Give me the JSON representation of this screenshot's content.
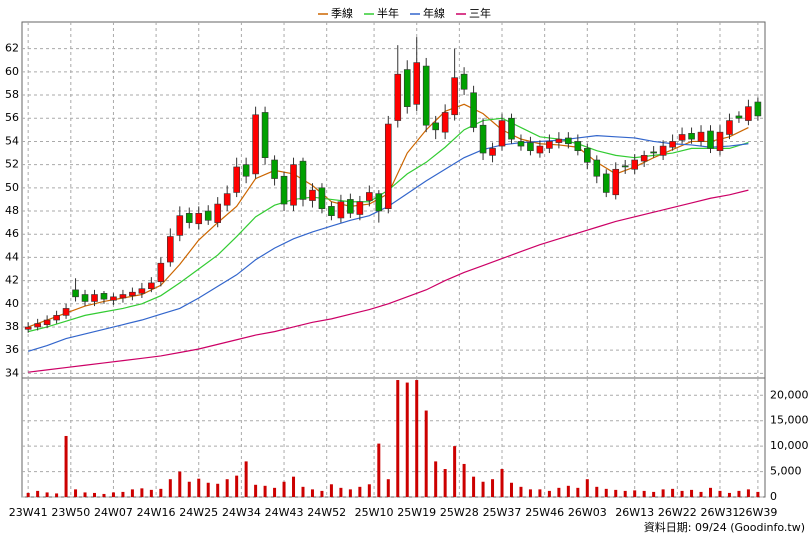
{
  "chart_data": {
    "type": "candlestick",
    "footer": "資料日期: 09/24 (Goodinfo.tw)",
    "up_color": "#ff0000",
    "down_color": "#00a000",
    "volume_color": "#cc0000",
    "grid": true,
    "xlim": [
      -1.3,
      155.5
    ],
    "xticks": [
      {
        "value": 0,
        "label": "23W41"
      },
      {
        "value": 9,
        "label": "23W50"
      },
      {
        "value": 18,
        "label": "24W07"
      },
      {
        "value": 27,
        "label": "24W16"
      },
      {
        "value": 36,
        "label": "24W25"
      },
      {
        "value": 45,
        "label": "24W34"
      },
      {
        "value": 54,
        "label": "24W43"
      },
      {
        "value": 63,
        "label": "24W52"
      },
      {
        "value": 73,
        "label": "25W10"
      },
      {
        "value": 82,
        "label": "25W19"
      },
      {
        "value": 91,
        "label": "25W28"
      },
      {
        "value": 100,
        "label": "25W37"
      },
      {
        "value": 109,
        "label": "25W46"
      },
      {
        "value": 118,
        "label": "26W03"
      },
      {
        "value": 128,
        "label": "26W13"
      },
      {
        "value": 137,
        "label": "26W22"
      },
      {
        "value": 146,
        "label": "26W31"
      },
      {
        "value": 154,
        "label": "26W39"
      }
    ],
    "ylim": [
      33.6,
      64.3
    ],
    "yticks": [
      34,
      36,
      38,
      40,
      42,
      44,
      46,
      48,
      50,
      52,
      54,
      56,
      58,
      60,
      62
    ],
    "volume_ylim": [
      0,
      23400
    ],
    "volume_yticks": [
      0,
      {
        "value": 5000,
        "label": "5,000"
      },
      {
        "value": 10000,
        "label": "10,000"
      },
      {
        "value": 15000,
        "label": "15,000"
      },
      {
        "value": 20000,
        "label": "20,000"
      }
    ],
    "candles": {
      "x": [
        0,
        2,
        4,
        6,
        8,
        10,
        12,
        14,
        16,
        18,
        20,
        22,
        24,
        26,
        28,
        30,
        32,
        34,
        36,
        38,
        40,
        42,
        44,
        46,
        48,
        50,
        52,
        54,
        56,
        58,
        60,
        62,
        64,
        66,
        68,
        70,
        72,
        74,
        76,
        78,
        80,
        82,
        84,
        86,
        88,
        90,
        92,
        94,
        96,
        98,
        100,
        102,
        104,
        106,
        108,
        110,
        112,
        114,
        116,
        118,
        120,
        122,
        124,
        126,
        128,
        130,
        132,
        134,
        136,
        138,
        140,
        142,
        144,
        146,
        148,
        150,
        152,
        154
      ],
      "open": [
        37.8,
        38.0,
        38.2,
        38.6,
        39.0,
        41.2,
        40.8,
        40.2,
        40.9,
        40.3,
        40.5,
        40.7,
        40.9,
        41.3,
        41.9,
        43.6,
        45.9,
        47.8,
        46.9,
        48.0,
        47.0,
        48.5,
        49.6,
        52.0,
        51.2,
        56.5,
        52.4,
        51.0,
        48.5,
        52.3,
        48.9,
        50.0,
        48.4,
        47.4,
        49.0,
        47.7,
        48.9,
        49.5,
        48.2,
        55.8,
        60.2,
        57.2,
        60.5,
        55.6,
        54.8,
        56.3,
        59.8,
        58.2,
        55.4,
        52.8,
        53.6,
        56.0,
        54.0,
        53.9,
        53.0,
        53.4,
        53.9,
        54.3,
        54.0,
        53.4,
        52.4,
        51.2,
        49.4,
        51.9,
        51.6,
        52.3,
        53.1,
        52.8,
        53.5,
        54.1,
        54.7,
        54.0,
        54.9,
        53.2,
        54.6,
        56.2,
        55.8,
        57.4
      ],
      "high": [
        38.4,
        38.7,
        39.0,
        39.4,
        40.0,
        42.2,
        41.2,
        41.2,
        41.1,
        40.9,
        41.2,
        41.4,
        41.8,
        42.3,
        44.0,
        46.5,
        48.4,
        48.3,
        48.4,
        48.5,
        49.2,
        50.2,
        52.6,
        52.6,
        57.0,
        57.0,
        52.8,
        51.4,
        52.6,
        52.6,
        50.4,
        50.4,
        48.8,
        49.4,
        49.5,
        49.3,
        50.2,
        49.8,
        56.2,
        62.3,
        61.0,
        63.0,
        61.2,
        56.2,
        57.2,
        62.0,
        60.4,
        58.8,
        56.0,
        53.9,
        56.4,
        56.4,
        54.6,
        54.4,
        54.1,
        54.6,
        54.8,
        54.8,
        54.6,
        53.8,
        52.8,
        51.6,
        52.2,
        52.4,
        52.9,
        53.2,
        53.6,
        54.1,
        54.6,
        55.2,
        55.2,
        55.4,
        55.4,
        55.4,
        56.4,
        56.6,
        57.6,
        57.8
      ],
      "low": [
        37.5,
        37.7,
        37.9,
        38.3,
        38.7,
        40.2,
        39.8,
        39.8,
        40.0,
        39.9,
        40.1,
        40.3,
        40.5,
        41.0,
        41.5,
        43.2,
        45.4,
        46.5,
        46.4,
        46.8,
        46.6,
        48.0,
        49.2,
        50.4,
        50.8,
        52.0,
        50.2,
        48.0,
        48.0,
        48.4,
        48.3,
        47.8,
        47.2,
        47.0,
        47.4,
        47.2,
        48.4,
        47.0,
        47.8,
        55.2,
        56.4,
        56.6,
        54.8,
        54.2,
        54.2,
        55.8,
        58.0,
        54.8,
        52.4,
        52.2,
        53.2,
        53.8,
        53.2,
        52.8,
        52.6,
        53.0,
        53.4,
        53.4,
        52.8,
        51.6,
        50.4,
        49.2,
        49.0,
        51.2,
        51.2,
        51.8,
        52.6,
        52.4,
        53.2,
        53.8,
        53.8,
        53.6,
        53.0,
        52.8,
        54.2,
        55.6,
        55.4,
        55.8
      ],
      "close": [
        38.0,
        38.3,
        38.6,
        39.0,
        39.6,
        40.6,
        40.2,
        40.8,
        40.4,
        40.6,
        40.8,
        41.0,
        41.3,
        41.8,
        43.5,
        45.8,
        47.6,
        47.0,
        47.8,
        47.2,
        48.6,
        49.5,
        51.8,
        51.0,
        56.3,
        52.6,
        50.8,
        48.6,
        52.0,
        49.0,
        49.8,
        48.2,
        47.6,
        48.8,
        47.8,
        48.8,
        49.6,
        48.0,
        55.5,
        59.8,
        57.0,
        60.8,
        55.4,
        55.0,
        56.5,
        59.5,
        58.5,
        55.2,
        53.0,
        53.4,
        55.8,
        54.2,
        53.6,
        53.2,
        53.6,
        54.0,
        54.2,
        53.8,
        53.2,
        52.2,
        51.0,
        49.6,
        51.6,
        51.8,
        52.4,
        52.8,
        53.0,
        53.6,
        54.0,
        54.6,
        54.2,
        54.8,
        53.4,
        54.8,
        55.8,
        56.0,
        57.0,
        56.2
      ],
      "volume": [
        800,
        1200,
        900,
        700,
        12000,
        1500,
        900,
        800,
        600,
        900,
        1000,
        1500,
        1700,
        1400,
        1600,
        3500,
        5000,
        3000,
        3600,
        2800,
        2600,
        3500,
        4200,
        7000,
        2400,
        2200,
        1800,
        3000,
        4000,
        2000,
        1500,
        1200,
        2500,
        1800,
        1500,
        2000,
        2500,
        10500,
        3500,
        23000,
        22500,
        23000,
        17000,
        7000,
        5500,
        10000,
        6500,
        4000,
        3000,
        3500,
        5500,
        2800,
        2000,
        1500,
        1500,
        1200,
        1800,
        2200,
        1800,
        3500,
        2000,
        1600,
        1400,
        1200,
        1300,
        1200,
        1000,
        1500,
        1600,
        1200,
        1400,
        1000,
        1800,
        1200,
        800,
        1200,
        1500,
        1000
      ]
    },
    "series": [
      {
        "name": "季線",
        "color": "#cc6600",
        "x": [
          0,
          4,
          8,
          12,
          16,
          20,
          24,
          28,
          32,
          36,
          40,
          44,
          48,
          52,
          56,
          60,
          64,
          68,
          72,
          76,
          80,
          84,
          88,
          92,
          96,
          100,
          104,
          108,
          112,
          116,
          120,
          124,
          128,
          132,
          136,
          140,
          144,
          148,
          152
        ],
        "values": [
          38.0,
          38.6,
          39.2,
          39.8,
          40.2,
          40.5,
          40.8,
          41.6,
          43.4,
          45.5,
          47.0,
          48.4,
          50.8,
          51.5,
          51.2,
          50.2,
          48.8,
          48.4,
          48.6,
          49.5,
          53.0,
          55.0,
          56.6,
          57.2,
          56.4,
          55.0,
          54.2,
          53.8,
          53.7,
          53.5,
          52.2,
          51.2,
          51.8,
          52.6,
          53.3,
          54.0,
          54.0,
          54.4,
          55.2
        ]
      },
      {
        "name": "半年",
        "color": "#33cc33",
        "x": [
          0,
          4,
          8,
          12,
          16,
          20,
          24,
          28,
          32,
          36,
          40,
          44,
          48,
          52,
          56,
          60,
          64,
          68,
          72,
          76,
          80,
          84,
          88,
          92,
          96,
          100,
          104,
          108,
          112,
          116,
          120,
          124,
          128,
          132,
          136,
          140,
          144,
          148,
          152
        ],
        "values": [
          37.6,
          38.0,
          38.5,
          39.0,
          39.3,
          39.6,
          40.0,
          40.7,
          41.8,
          43.0,
          44.2,
          45.8,
          47.5,
          48.5,
          49.0,
          49.2,
          49.0,
          48.8,
          48.8,
          49.8,
          51.2,
          52.2,
          53.5,
          55.0,
          55.8,
          56.0,
          55.2,
          54.4,
          54.2,
          53.8,
          53.2,
          52.8,
          52.6,
          52.8,
          53.0,
          53.4,
          53.4,
          53.4,
          53.9
        ]
      },
      {
        "name": "年線",
        "color": "#3366cc",
        "x": [
          0,
          4,
          8,
          12,
          16,
          20,
          24,
          28,
          32,
          36,
          40,
          44,
          48,
          52,
          56,
          60,
          64,
          68,
          72,
          76,
          80,
          84,
          88,
          92,
          96,
          100,
          104,
          108,
          112,
          116,
          120,
          124,
          128,
          132,
          136,
          140,
          144,
          148,
          152
        ],
        "values": [
          35.9,
          36.4,
          37.0,
          37.4,
          37.8,
          38.2,
          38.6,
          39.1,
          39.6,
          40.5,
          41.5,
          42.5,
          43.8,
          44.8,
          45.6,
          46.2,
          46.7,
          47.2,
          47.6,
          48.4,
          49.5,
          50.6,
          51.6,
          52.6,
          53.3,
          53.7,
          53.9,
          54.0,
          54.1,
          54.3,
          54.5,
          54.4,
          54.3,
          54.0,
          53.8,
          53.7,
          53.5,
          53.6,
          53.8
        ]
      },
      {
        "name": "三年",
        "color": "#cc0066",
        "x": [
          0,
          4,
          8,
          12,
          16,
          20,
          24,
          28,
          32,
          36,
          40,
          44,
          48,
          52,
          56,
          60,
          64,
          68,
          72,
          76,
          80,
          84,
          88,
          92,
          96,
          100,
          104,
          108,
          112,
          116,
          120,
          124,
          128,
          132,
          136,
          140,
          144,
          148,
          152
        ],
        "values": [
          34.1,
          34.3,
          34.5,
          34.7,
          34.9,
          35.1,
          35.3,
          35.5,
          35.8,
          36.1,
          36.5,
          36.9,
          37.3,
          37.6,
          38.0,
          38.4,
          38.7,
          39.1,
          39.5,
          40.0,
          40.6,
          41.2,
          42.0,
          42.7,
          43.3,
          43.9,
          44.5,
          45.1,
          45.6,
          46.1,
          46.6,
          47.1,
          47.5,
          47.9,
          48.3,
          48.7,
          49.1,
          49.4,
          49.8
        ]
      }
    ]
  }
}
